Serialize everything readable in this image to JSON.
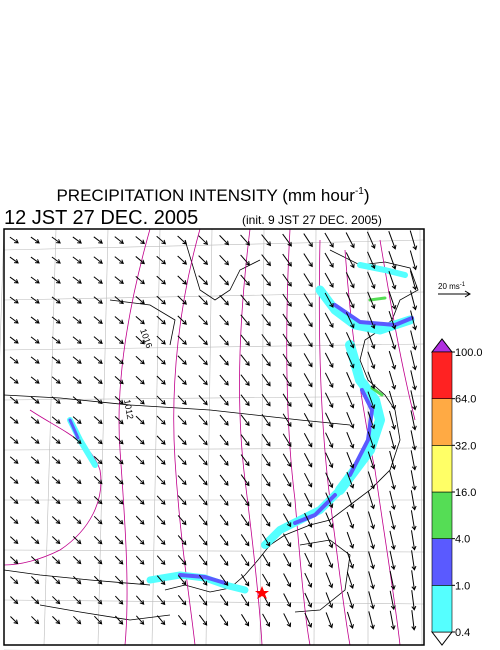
{
  "header": {
    "title": {
      "text": "PRECIPITATION INTENSITY (mm hour",
      "sup": "-1",
      "end": ")"
    },
    "time": "12 JST 27 DEC. 2005",
    "init": "(init. 9 JST 27 DEC. 2005)"
  },
  "wind_scale": {
    "text": "20 ms",
    "sup": "-1"
  },
  "isobar_labels": [
    "1016",
    "1012"
  ],
  "colorbar": {
    "ticks": [
      {
        "value": 0.4,
        "label": "0.4"
      },
      {
        "value": 1,
        "label": "1.0"
      },
      {
        "value": 4,
        "label": "4.0"
      },
      {
        "value": 16,
        "label": "16.0"
      },
      {
        "value": 32,
        "label": "32.0"
      },
      {
        "value": 64,
        "label": "64.0"
      },
      {
        "value": 100,
        "label": "100.0"
      }
    ],
    "colors": [
      "#ffffff",
      "#55ffff",
      "#5a5aff",
      "#55dd55",
      "#ffff66",
      "#ffaa44",
      "#ff2222",
      "#b030e0"
    ]
  }
}
